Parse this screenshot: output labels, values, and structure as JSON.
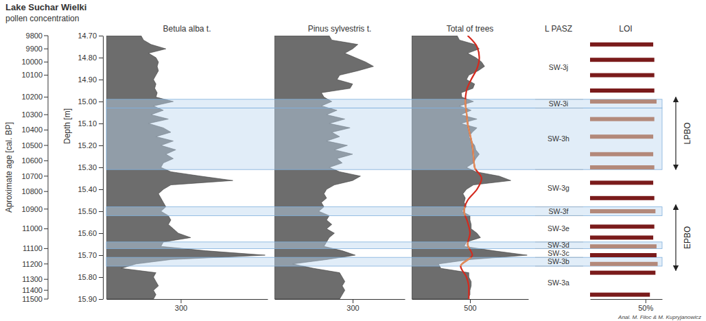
{
  "chart_data": {
    "type": "area",
    "title": "Lake Suchar Wielki",
    "subtitle": "pollen concentration",
    "x_label": "Depth [m]",
    "x": [
      14.7,
      14.72,
      14.74,
      14.76,
      14.78,
      14.8,
      14.82,
      14.84,
      14.86,
      14.88,
      14.9,
      14.92,
      14.94,
      14.96,
      14.98,
      15,
      15.02,
      15.04,
      15.06,
      15.08,
      15.1,
      15.12,
      15.14,
      15.16,
      15.18,
      15.2,
      15.22,
      15.24,
      15.26,
      15.28,
      15.3,
      15.32,
      15.34,
      15.36,
      15.38,
      15.4,
      15.42,
      15.44,
      15.46,
      15.48,
      15.5,
      15.52,
      15.54,
      15.56,
      15.58,
      15.6,
      15.62,
      15.64,
      15.66,
      15.68,
      15.7,
      15.72,
      15.74,
      15.76,
      15.78,
      15.8,
      15.82,
      15.84,
      15.86,
      15.88,
      15.9
    ],
    "xlim": [
      14.7,
      15.9
    ],
    "xticks": [
      {
        "value": 14.7,
        "label": "14.70"
      },
      {
        "value": 14.8,
        "label": "14.80"
      },
      {
        "value": 14.9,
        "label": "14.90"
      },
      {
        "value": 15,
        "label": "15.00"
      },
      {
        "value": 15.1,
        "label": "15.10"
      },
      {
        "value": 15.2,
        "label": "15.20"
      },
      {
        "value": 15.3,
        "label": "15.30"
      },
      {
        "value": 15.4,
        "label": "15.40"
      },
      {
        "value": 15.5,
        "label": "15.50"
      },
      {
        "value": 15.6,
        "label": "15.60"
      },
      {
        "value": 15.7,
        "label": "15.70"
      },
      {
        "value": 15.8,
        "label": "15.80"
      },
      {
        "value": 15.9,
        "label": "15.90"
      }
    ],
    "age_axis": {
      "label": "Aproximate age [cal. BP]",
      "ticks": [
        {
          "value": 9800,
          "depth": 14.7
        },
        {
          "value": 9900,
          "depth": 14.76
        },
        {
          "value": 10000,
          "depth": 14.82
        },
        {
          "value": 10100,
          "depth": 14.88
        },
        {
          "value": 10200,
          "depth": 14.98
        },
        {
          "value": 10300,
          "depth": 15.06
        },
        {
          "value": 10400,
          "depth": 15.13
        },
        {
          "value": 10500,
          "depth": 15.2
        },
        {
          "value": 10600,
          "depth": 15.27
        },
        {
          "value": 10700,
          "depth": 15.34
        },
        {
          "value": 10800,
          "depth": 15.41
        },
        {
          "value": 10900,
          "depth": 15.49
        },
        {
          "value": 11000,
          "depth": 15.58
        },
        {
          "value": 11100,
          "depth": 15.67
        },
        {
          "value": 11200,
          "depth": 15.74
        },
        {
          "value": 11300,
          "depth": 15.81
        },
        {
          "value": 11400,
          "depth": 15.86
        },
        {
          "value": 11500,
          "depth": 15.9
        }
      ]
    },
    "series": [
      {
        "name": "Betula alba t.",
        "color": "#6d6d6d",
        "ylim": [
          0,
          650
        ],
        "yticks": [
          300
        ],
        "values": [
          140,
          150,
          180,
          240,
          170,
          200,
          210,
          205,
          210,
          200,
          190,
          200,
          195,
          205,
          200,
          270,
          190,
          230,
          180,
          250,
          170,
          230,
          260,
          200,
          270,
          220,
          280,
          240,
          270,
          230,
          220,
          260,
          380,
          510,
          260,
          230,
          210,
          220,
          230,
          240,
          220,
          250,
          260,
          250,
          270,
          290,
          340,
          230,
          220,
          400,
          640,
          260,
          120,
          60,
          200,
          190,
          200,
          210,
          190,
          200,
          190
        ]
      },
      {
        "name": "Pinus sylvestris t.",
        "color": "#6d6d6d",
        "ylim": [
          0,
          500
        ],
        "yticks": [
          300
        ],
        "values": [
          210,
          220,
          320,
          300,
          270,
          310,
          350,
          380,
          320,
          250,
          240,
          300,
          290,
          180,
          190,
          220,
          180,
          240,
          200,
          270,
          210,
          290,
          220,
          250,
          200,
          280,
          230,
          300,
          240,
          260,
          210,
          250,
          330,
          300,
          230,
          200,
          190,
          200,
          180,
          190,
          170,
          210,
          200,
          220,
          200,
          230,
          210,
          200,
          190,
          260,
          310,
          200,
          70,
          150,
          250,
          260,
          270,
          260,
          270,
          260,
          250
        ]
      },
      {
        "name": "Total of trees",
        "color": "#6d6d6d",
        "ylim": [
          0,
          1000
        ],
        "yticks": [
          500
        ],
        "values": [
          390,
          410,
          540,
          580,
          480,
          550,
          600,
          625,
          570,
          490,
          470,
          540,
          525,
          425,
          430,
          530,
          410,
          510,
          420,
          560,
          420,
          560,
          520,
          490,
          510,
          540,
          550,
          580,
          550,
          530,
          470,
          550,
          750,
          850,
          530,
          470,
          440,
          460,
          450,
          470,
          430,
          500,
          500,
          510,
          510,
          560,
          590,
          470,
          450,
          700,
          990,
          500,
          230,
          250,
          490,
          490,
          510,
          510,
          500,
          500,
          480
        ]
      }
    ],
    "smooth": {
      "type": "line",
      "color": "#d42a1e",
      "series_name": "Total of trees",
      "x": [
        14.7,
        14.75,
        14.8,
        14.85,
        14.9,
        14.95,
        15,
        15.05,
        15.1,
        15.15,
        15.2,
        15.25,
        15.3,
        15.35,
        15.4,
        15.45,
        15.5,
        15.55,
        15.6,
        15.65,
        15.7,
        15.75,
        15.8,
        15.85,
        15.9
      ],
      "values": [
        480,
        560,
        580,
        560,
        510,
        470,
        460,
        470,
        480,
        500,
        520,
        530,
        540,
        600,
        560,
        480,
        450,
        480,
        500,
        480,
        520,
        420,
        470,
        490,
        490
      ]
    },
    "zones": {
      "label": "L PASZ",
      "items": [
        {
          "name": "SW-3j",
          "from": 14.7,
          "to": 14.99
        },
        {
          "name": "SW-3i",
          "from": 14.99,
          "to": 15.03
        },
        {
          "name": "SW-3h",
          "from": 15.03,
          "to": 15.31
        },
        {
          "name": "SW-3g",
          "from": 15.31,
          "to": 15.48
        },
        {
          "name": "SW-3f",
          "from": 15.48,
          "to": 15.52
        },
        {
          "name": "SW-3e",
          "from": 15.52,
          "to": 15.64
        },
        {
          "name": "SW-3d",
          "from": 15.64,
          "to": 15.67
        },
        {
          "name": "SW-3c",
          "from": 15.67,
          "to": 15.71
        },
        {
          "name": "SW-3b",
          "from": 15.71,
          "to": 15.75
        },
        {
          "name": "SW-3a",
          "from": 15.75,
          "to": 15.9
        }
      ],
      "shaded": [
        "SW-3i",
        "SW-3h",
        "SW-3f",
        "SW-3d",
        "SW-3b"
      ]
    },
    "loi": {
      "type": "bar",
      "orientation": "horizontal",
      "label": "LOI",
      "x": [
        14.74,
        14.81,
        14.88,
        14.95,
        15,
        15.08,
        15.16,
        15.24,
        15.3,
        15.37,
        15.44,
        15.5,
        15.57,
        15.62,
        15.66,
        15.7,
        15.74,
        15.78,
        15.88
      ],
      "values": [
        57,
        58,
        58,
        58,
        60,
        58,
        57,
        57,
        58,
        57,
        58,
        59,
        58,
        57,
        60,
        60,
        61,
        59,
        54
      ],
      "colors": [
        "#7a1b1b",
        "#7a1b1b",
        "#7a1b1b",
        "#7a1b1b",
        "#b3897a",
        "#b3897a",
        "#b3897a",
        "#b3897a",
        "#b3897a",
        "#7a1b1b",
        "#7a1b1b",
        "#b3897a",
        "#7a1b1b",
        "#7a1b1b",
        "#b3897a",
        "#7a1b1b",
        "#b3897a",
        "#7a1b1b",
        "#7a1b1b"
      ],
      "ylim": [
        0,
        65
      ],
      "yticks": [
        {
          "value": 50,
          "label": "50%"
        }
      ]
    },
    "events": [
      {
        "label": "LPBO",
        "from": 14.98,
        "to": 15.31
      },
      {
        "label": "EPBO",
        "from": 15.47,
        "to": 15.77
      }
    ],
    "credit": "Anal. M. Filoc & M. Kupryjanowicz"
  }
}
